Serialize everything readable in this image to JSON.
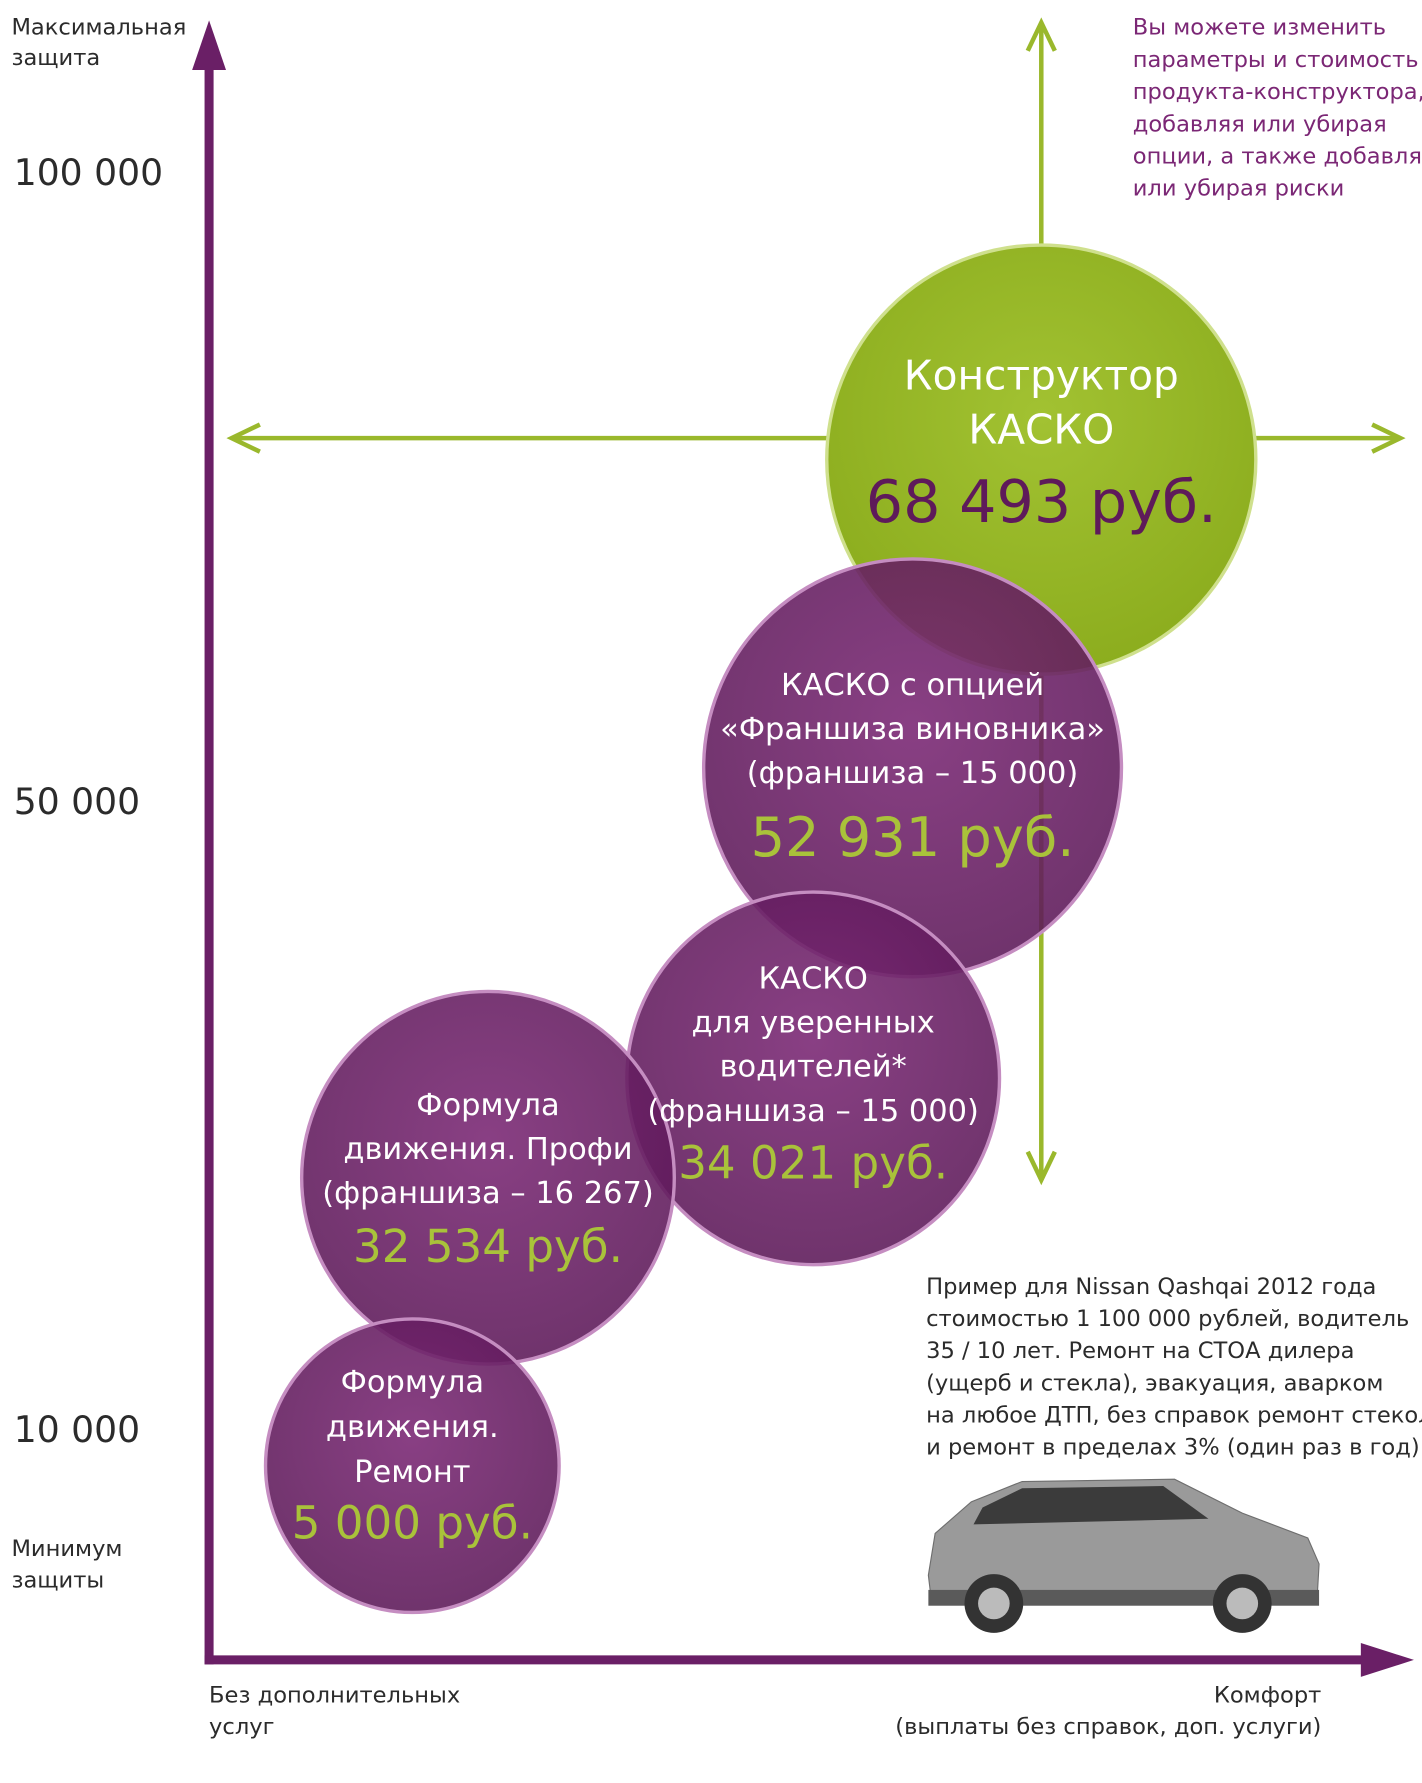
{
  "y_axis": {
    "top_label": [
      "Максимальная",
      "защита"
    ],
    "ticks": [
      "100 000",
      "50 000",
      "10 000"
    ],
    "bottom_label": [
      "Минимум",
      "защиты"
    ]
  },
  "x_axis": {
    "left_label": [
      "Без дополнительных",
      "услуг"
    ],
    "right_label": [
      "Комфорт",
      "(выплаты без справок, доп. услуги)"
    ]
  },
  "hint": [
    "Вы можете изменить",
    "параметры и стоимость",
    "продукта-конструктора,",
    "добавляя или убирая",
    "опции, а также добавляя",
    "или убирая риски"
  ],
  "bubbles": [
    {
      "lines": [
        "Конструктор",
        "КАСКО"
      ],
      "price": "68 493 руб."
    },
    {
      "lines": [
        "КАСКО с опцией",
        "«Франшиза виновника»",
        "(франшиза – 15 000)"
      ],
      "price": "52 931 руб."
    },
    {
      "lines": [
        "КАСКО",
        "для уверенных",
        "водителей*",
        "(франшиза – 15 000)"
      ],
      "price": "34 021 руб."
    },
    {
      "lines": [
        "Формула",
        "движения. Профи",
        "(франшиза – 16 267)"
      ],
      "price": "32 534 руб."
    },
    {
      "lines": [
        "Формула",
        "движения.",
        "Ремонт"
      ],
      "price": "5 000 руб."
    }
  ],
  "note": [
    "Пример для Nissan Qashqai 2012 года",
    "стоимостью 1 100 000 рублей, водитель",
    "35 / 10 лет. Ремонт на СТОА дилера",
    "(ущерб и стекла), эвакуация, аварком",
    "на любое ДТП, без справок ремонт стекол",
    "и ремонт в пределах 3% (один раз в год)."
  ]
}
